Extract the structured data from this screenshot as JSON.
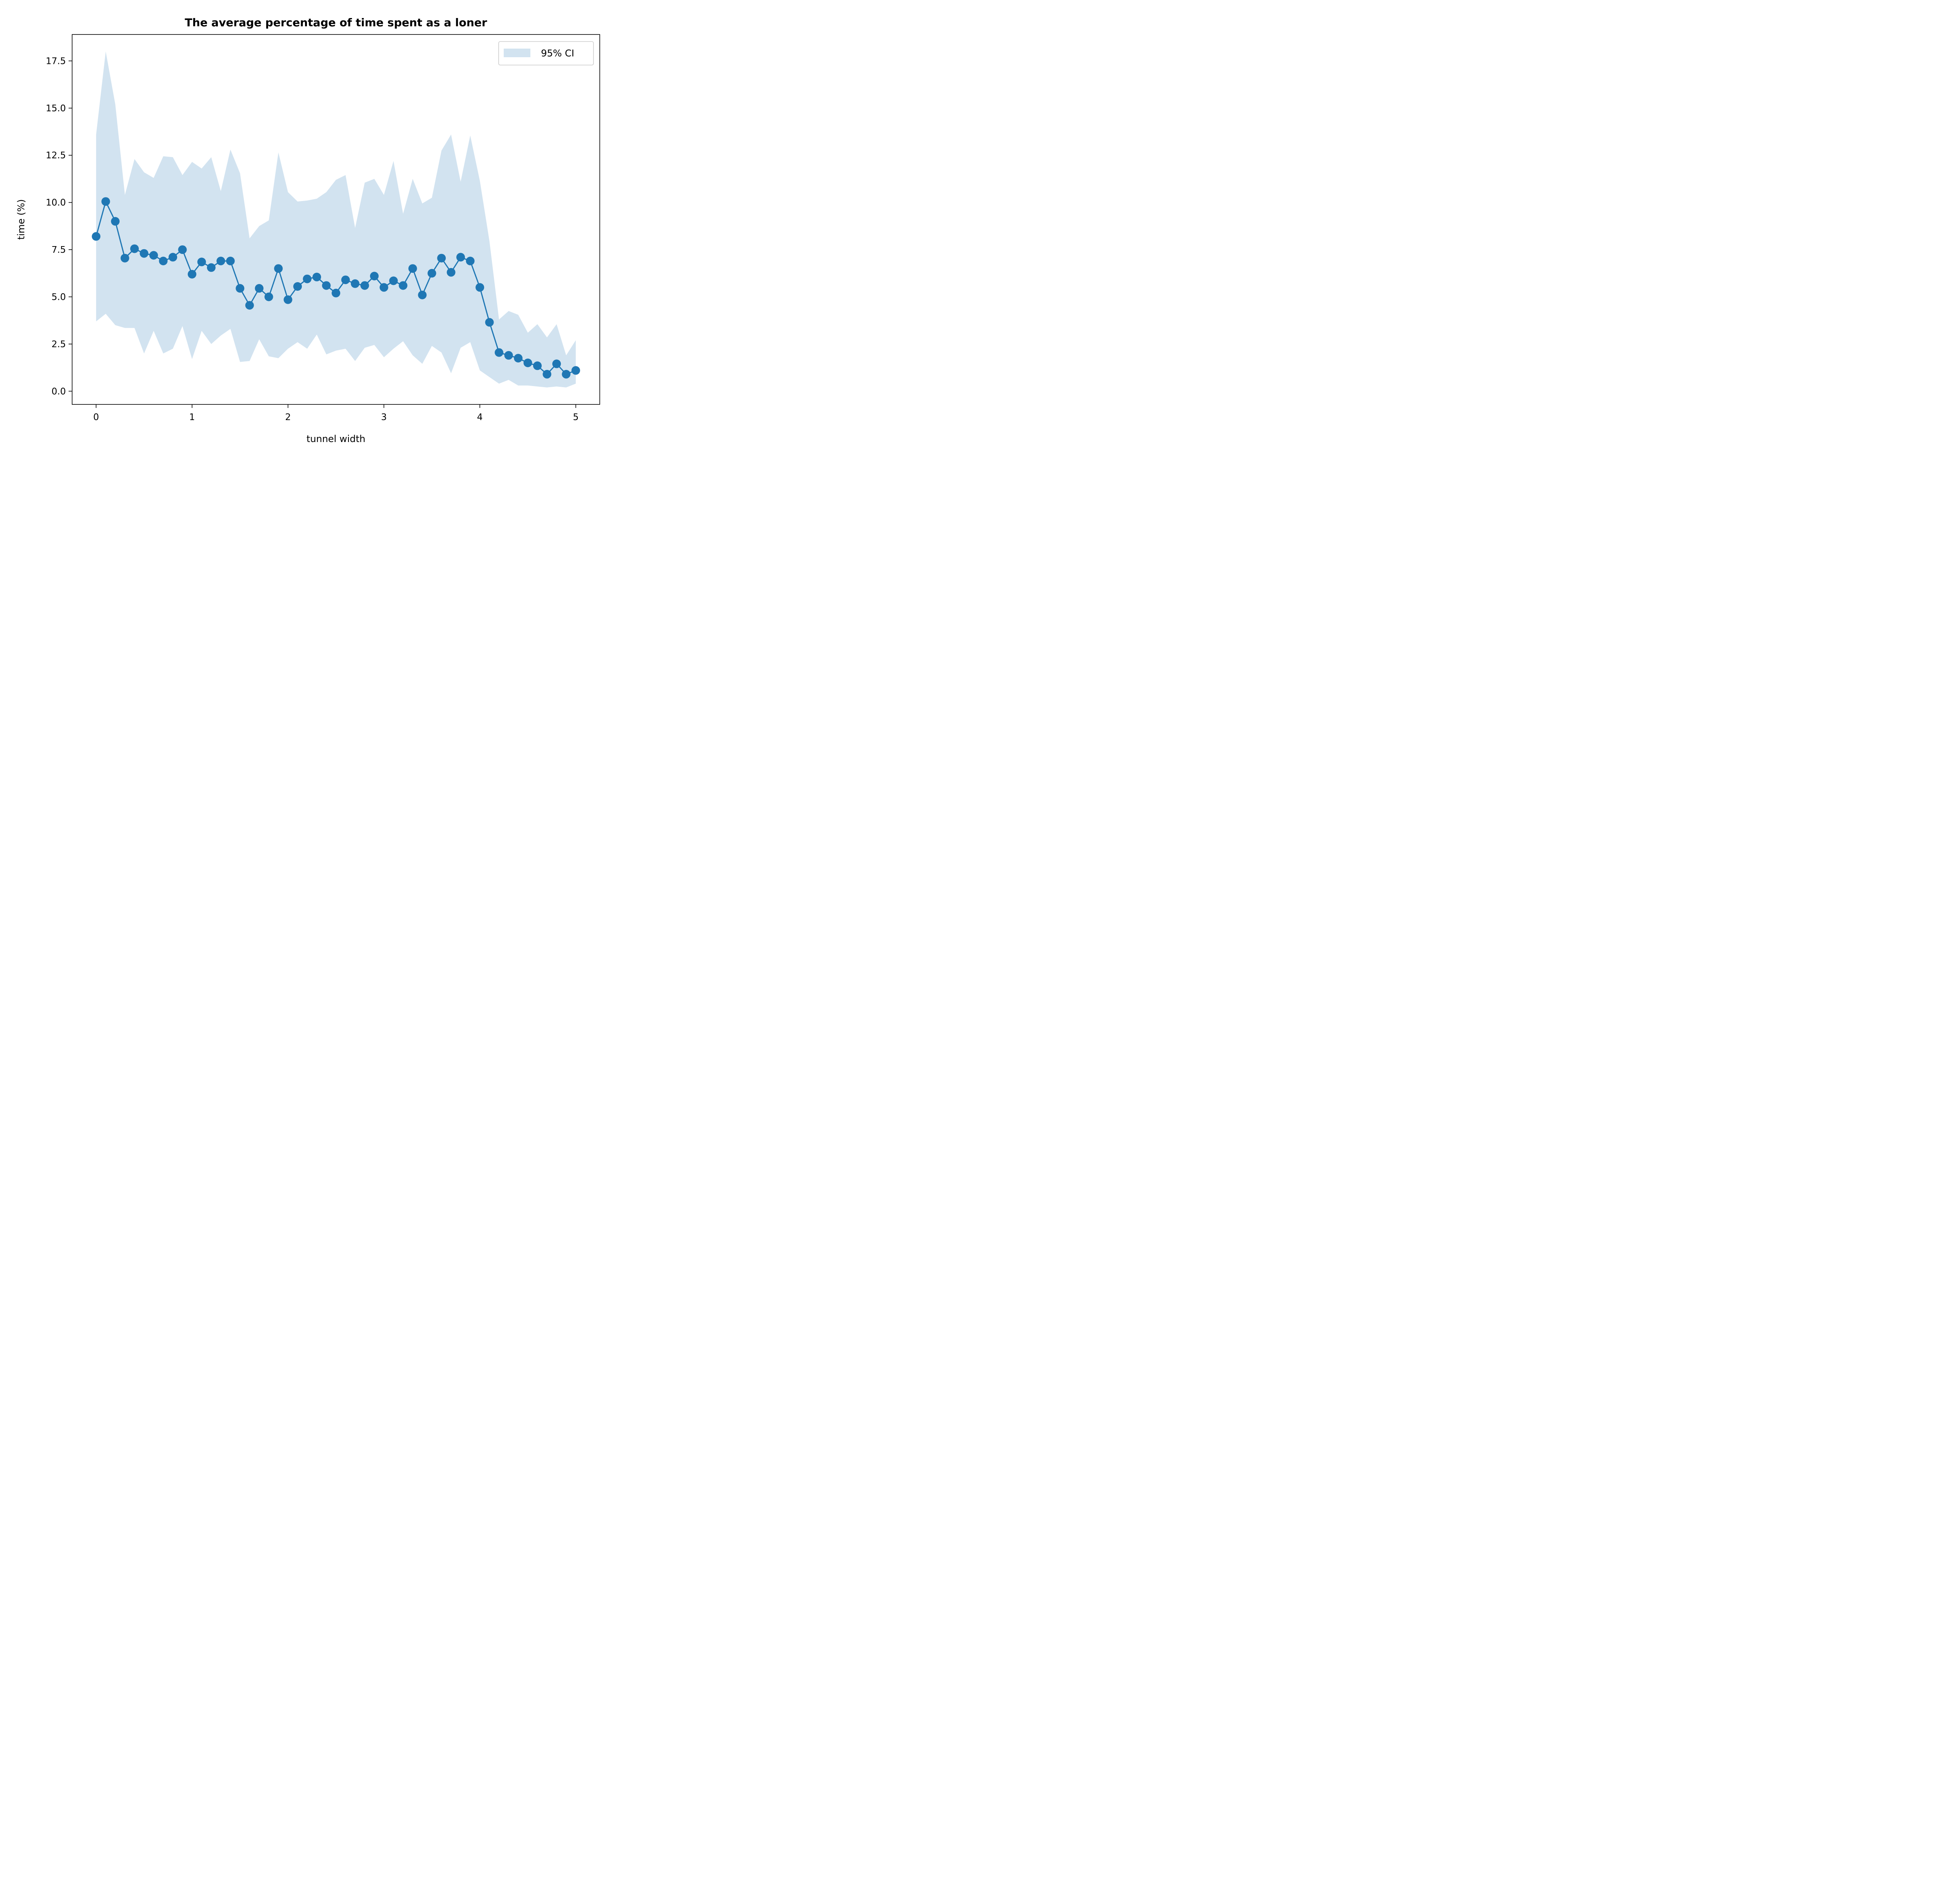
{
  "chart_data": {
    "type": "line",
    "title": "The average percentage of time spent as a loner",
    "xlabel": "tunnel width",
    "ylabel": "time (%)",
    "xlim": [
      -0.25,
      5.25
    ],
    "ylim": [
      -0.7,
      18.9
    ],
    "xticks": [
      0,
      1,
      2,
      3,
      4,
      5
    ],
    "xtick_labels": [
      "0",
      "1",
      "2",
      "3",
      "4",
      "5"
    ],
    "yticks": [
      0,
      2.5,
      5,
      7.5,
      10,
      12.5,
      15,
      17.5
    ],
    "ytick_labels": [
      "0.0",
      "2.5",
      "5.0",
      "7.5",
      "10.0",
      "12.5",
      "15.0",
      "17.5"
    ],
    "grid": false,
    "legend": {
      "position": "top-right",
      "entries": [
        "95% CI"
      ]
    },
    "colors": {
      "line": "#1f77b4",
      "band": "#d2e3f0"
    },
    "x": [
      0,
      0.1,
      0.2,
      0.3,
      0.4,
      0.5,
      0.6,
      0.7,
      0.8,
      0.9,
      1.0,
      1.1,
      1.2,
      1.3,
      1.4,
      1.5,
      1.6,
      1.7,
      1.8,
      1.9,
      2.0,
      2.1,
      2.2,
      2.3,
      2.4,
      2.5,
      2.6,
      2.7,
      2.8,
      2.9,
      3.0,
      3.1,
      3.2,
      3.3,
      3.4,
      3.5,
      3.6,
      3.7,
      3.8,
      3.9,
      4.0,
      4.1,
      4.2,
      4.3,
      4.4,
      4.5,
      4.6,
      4.7,
      4.8,
      4.9,
      5.0
    ],
    "series": [
      {
        "values": [
          8.2,
          10.05,
          9.0,
          7.05,
          7.55,
          7.3,
          7.2,
          6.9,
          7.1,
          7.5,
          6.2,
          6.85,
          6.55,
          6.9,
          6.9,
          5.45,
          4.55,
          5.45,
          5.0,
          6.5,
          4.85,
          5.55,
          5.95,
          6.05,
          5.6,
          5.2,
          5.9,
          5.7,
          5.6,
          6.1,
          5.5,
          5.85,
          5.6,
          6.5,
          5.1,
          6.25,
          7.05,
          6.3,
          7.1,
          6.9,
          5.5,
          3.65,
          2.05,
          1.9,
          1.75,
          1.5,
          1.35,
          0.9,
          1.45,
          0.9,
          1.1
        ]
      }
    ],
    "ci_band": {
      "name": "95% CI",
      "upper": [
        13.6,
        18.0,
        15.2,
        10.4,
        12.3,
        11.6,
        11.3,
        12.45,
        12.4,
        11.45,
        12.15,
        11.8,
        12.4,
        10.6,
        12.8,
        11.55,
        8.1,
        8.75,
        9.05,
        12.65,
        10.55,
        10.05,
        10.1,
        10.2,
        10.55,
        11.2,
        11.45,
        8.65,
        11.05,
        11.25,
        10.4,
        12.2,
        9.4,
        11.25,
        9.95,
        10.25,
        12.75,
        13.6,
        11.1,
        13.55,
        11.15,
        7.95,
        3.8,
        4.25,
        4.05,
        3.1,
        3.55,
        2.85,
        3.55,
        1.9,
        2.7
      ],
      "lower": [
        3.7,
        4.1,
        3.5,
        3.35,
        3.35,
        2.0,
        3.2,
        2.0,
        2.25,
        3.45,
        1.7,
        3.2,
        2.5,
        2.95,
        3.3,
        1.55,
        1.6,
        2.75,
        1.85,
        1.75,
        2.25,
        2.6,
        2.25,
        3.0,
        1.95,
        2.15,
        2.25,
        1.6,
        2.3,
        2.45,
        1.8,
        2.25,
        2.65,
        1.9,
        1.45,
        2.4,
        2.05,
        0.95,
        2.3,
        2.6,
        1.1,
        0.75,
        0.4,
        0.6,
        0.3,
        0.3,
        0.25,
        0.2,
        0.25,
        0.2,
        0.4
      ]
    }
  }
}
